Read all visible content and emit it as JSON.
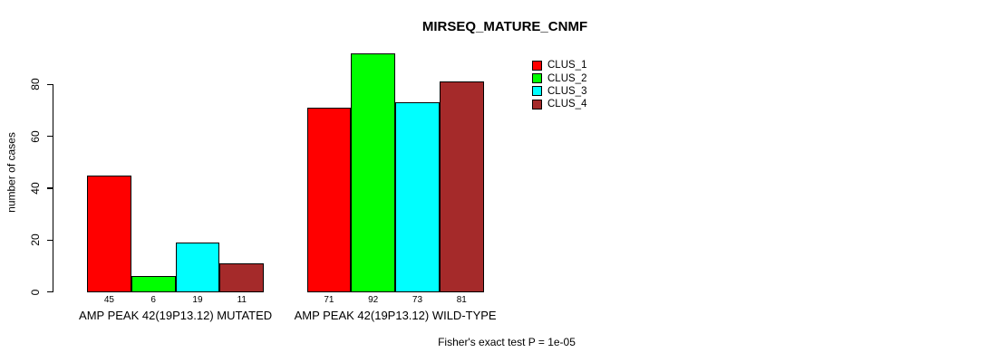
{
  "title": "MIRSEQ_MATURE_CNMF",
  "legend": {
    "position": "top-right",
    "items": [
      {
        "label": "CLUS_1",
        "color": "#FF0000"
      },
      {
        "label": "CLUS_2",
        "color": "#00FF00"
      },
      {
        "label": "CLUS_3",
        "color": "#00FFFF"
      },
      {
        "label": "CLUS_4",
        "color": "#A52A2A"
      }
    ]
  },
  "chart_data": {
    "type": "bar",
    "title": "MIRSEQ_MATURE_CNMF",
    "ylabel": "number of cases",
    "xlabel": "",
    "ylim": [
      0,
      92
    ],
    "yticks": [
      0,
      20,
      40,
      60,
      80
    ],
    "grid": false,
    "legend_position": "top-right",
    "series_colors": [
      "#FF0000",
      "#00FF00",
      "#00FFFF",
      "#A52A2A"
    ],
    "categories": [
      "AMP PEAK 42(19P13.12) MUTATED",
      "AMP PEAK 42(19P13.12) WILD-TYPE"
    ],
    "series": [
      {
        "name": "CLUS_1",
        "values": [
          45,
          71
        ]
      },
      {
        "name": "CLUS_2",
        "values": [
          6,
          92
        ]
      },
      {
        "name": "CLUS_3",
        "values": [
          19,
          73
        ]
      },
      {
        "name": "CLUS_4",
        "values": [
          11,
          81
        ]
      }
    ],
    "bar_value_labels": [
      [
        45,
        6,
        19,
        11
      ],
      [
        71,
        92,
        73,
        81
      ]
    ],
    "annotation": "Fisher's exact test P = 1e-05"
  }
}
